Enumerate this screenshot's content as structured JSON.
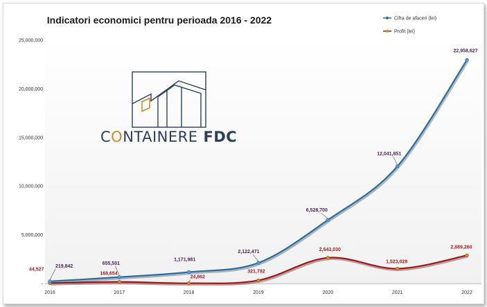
{
  "chart_data": {
    "type": "line",
    "title": "Indicatori economici pentru perioada 2016 - 2022",
    "categories": [
      "2016",
      "2017",
      "2018",
      "2019",
      "2020",
      "2021",
      "2022"
    ],
    "ylim": [
      0,
      25000000
    ],
    "yticks": [
      0,
      5000000,
      10000000,
      15000000,
      20000000,
      25000000
    ],
    "ytick_labels": [
      "-",
      "5,000,000",
      "10,000,000",
      "15,000,000",
      "20,000,000",
      "25,000,000"
    ],
    "legend_position": "top-right",
    "series": [
      {
        "name": "Cifra de afaceri (lei)",
        "color": "#2e6e9e",
        "values": [
          219842,
          655501,
          1171981,
          2122471,
          6528700,
          12041851,
          22958627
        ],
        "labels": [
          "219,842",
          "655,501",
          "1,171,981",
          "2,122,471",
          "6,528,700",
          "12,041,851",
          "22,958,627"
        ]
      },
      {
        "name": "Profit (lei)",
        "color": "#a01818",
        "values": [
          44527,
          168654,
          24862,
          321792,
          2643030,
          1523028,
          2889260
        ],
        "labels": [
          "44,527",
          "168,654",
          "24,862",
          "321,792",
          "2,643,030",
          "1,523,028",
          "2,889,260"
        ]
      }
    ]
  },
  "logo": {
    "text_thin": "C",
    "text_accent": "O",
    "text_rest": "NTAINERE",
    "text_bold": "FDC",
    "accent_color": "#d08a2a",
    "main_color": "#2b3f5c"
  }
}
